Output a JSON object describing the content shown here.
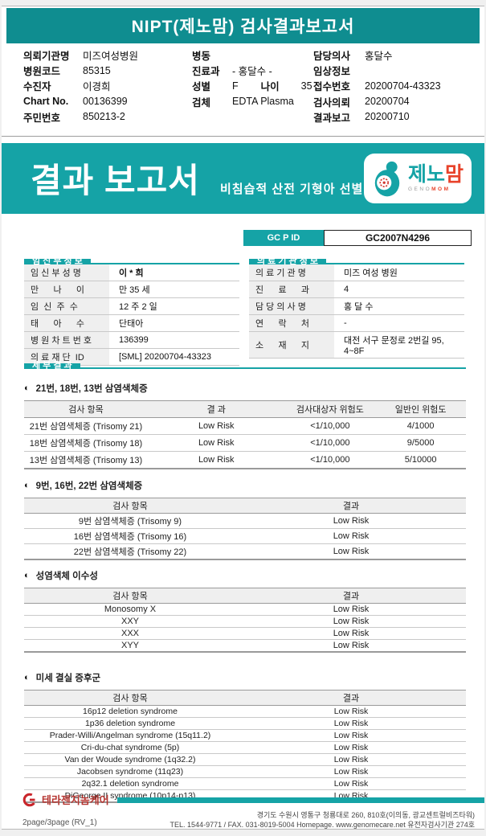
{
  "colors": {
    "teal": "#15a3a6",
    "teal_dark": "#0f8d90",
    "logo_red": "#e8432b",
    "footer_red": "#b5342f",
    "status_low_risk_text": "#222222"
  },
  "header": {
    "title": "NIPT(제노맘) 검사결과보고서"
  },
  "info_header": {
    "col1": [
      {
        "label": "의뢰기관명",
        "value": "미즈여성병원"
      },
      {
        "label": "병원코드",
        "value": "85315"
      },
      {
        "label": "수진자",
        "value": "이경희"
      },
      {
        "label": "Chart No.",
        "value": "00136399"
      },
      {
        "label": "주민번호",
        "value": "850213-2"
      }
    ],
    "col2": [
      {
        "label": "병동",
        "value": ""
      },
      {
        "label": "진료과",
        "value": "- 홍달수 -"
      },
      {
        "label": "성별",
        "value": "F",
        "label2": "나이",
        "value2": "35"
      },
      {
        "label": "검체",
        "value": "EDTA Plasma"
      }
    ],
    "col3": [
      {
        "label": "담당의사",
        "value": "홍달수"
      },
      {
        "label": "임상정보",
        "value": ""
      },
      {
        "label": "접수번호",
        "value": "20200704-43323"
      },
      {
        "label": "검사의뢰",
        "value": "20200704"
      },
      {
        "label": "결과보고",
        "value": "20200710"
      }
    ]
  },
  "banner": {
    "title": "결과 보고서",
    "subtitle": "비침습적 산전 기형아 선별 검사",
    "logo": {
      "kr_teal": "제노",
      "kr_red": "맘",
      "en_gray": "GENO",
      "en_red": "MOM"
    }
  },
  "gcpid": {
    "label": "GC P ID",
    "value": "GC2007N4296"
  },
  "pregnancy_info": {
    "title": "임 신 부 정 보",
    "rows": [
      {
        "label": "임 신 부 성 명",
        "value": "이 * 희",
        "bold": true
      },
      {
        "label": "만      나      이",
        "value": "만 35 세"
      },
      {
        "label": "임  신  주  수",
        "value": "12 주 2 일"
      },
      {
        "label": "태      아      수",
        "value": "단태아"
      },
      {
        "label": "병 원 차 트 번 호",
        "value": "136399"
      },
      {
        "label": "의 료 재 단  ID",
        "value": "[SML] 20200704-43323"
      }
    ]
  },
  "clinic_info": {
    "title": "의 료 기 관 정 보",
    "rows": [
      {
        "label": "의 료 기 관 명",
        "value": "미즈 여성 병원"
      },
      {
        "label": "진      료      과",
        "value": "4"
      },
      {
        "label": "담 당 의 사 명",
        "value": "홍 달 수"
      },
      {
        "label": "연      락      처",
        "value": "-"
      },
      {
        "label": "소      재      지",
        "value": "대전 서구 문정로 2번길 95, 4~8F",
        "tall": true
      }
    ]
  },
  "detail": {
    "section_title": "세 부 결 과",
    "bullet": "◐",
    "subsections": [
      {
        "title": "21번, 18번, 13번 삼염색체증",
        "columns": [
          "검사 항목",
          "결 과",
          "검사대상자 위험도",
          "일반인 위험도"
        ],
        "rows": [
          [
            "21번 삼염색체증 (Trisomy 21)",
            "Low Risk",
            "<1/10,000",
            "4/1000"
          ],
          [
            "18번 삼염색체증 (Trisomy 18)",
            "Low Risk",
            "<1/10,000",
            "9/5000"
          ],
          [
            "13번 삼염색체증 (Trisomy 13)",
            "Low Risk",
            "<1/10,000",
            "5/10000"
          ]
        ]
      },
      {
        "title": "9번, 16번, 22번 삼염색체증",
        "columns": [
          "검사 항목",
          "결과"
        ],
        "rows": [
          [
            "9번 삼염색체증 (Trisomy 9)",
            "Low Risk"
          ],
          [
            "16번 삼염색체증 (Trisomy 16)",
            "Low Risk"
          ],
          [
            "22번 삼염색체증 (Trisomy 22)",
            "Low Risk"
          ]
        ]
      },
      {
        "title": "성염색체 이수성",
        "columns": [
          "검사 항목",
          "결과"
        ],
        "rows": [
          [
            "Monosomy X",
            "Low Risk"
          ],
          [
            "XXY",
            "Low Risk"
          ],
          [
            "XXX",
            "Low Risk"
          ],
          [
            "XYY",
            "Low Risk"
          ]
        ]
      },
      {
        "title": "미세 결실 증후군",
        "columns": [
          "검사 항목",
          "결과"
        ],
        "rows": [
          [
            "16p12 deletion syndrome",
            "Low Risk"
          ],
          [
            "1p36  deletion syndrome",
            "Low Risk"
          ],
          [
            "Prader-Willi/Angelman syndrome (15q11.2)",
            "Low Risk"
          ],
          [
            "Cri-du-chat syndrome (5p)",
            "Low Risk"
          ],
          [
            "Van der Woude syndrome (1q32.2)",
            "Low Risk"
          ],
          [
            "Jacobsen syndrome (11q23)",
            "Low Risk"
          ],
          [
            "2q32.1 deletion syndrome",
            "Low Risk"
          ],
          [
            "DiGeorge II syndrome (10p14-p13)",
            "Low Risk"
          ]
        ]
      }
    ]
  },
  "footer": {
    "company": "테라젠지놈케어",
    "address_line1": "경기도 수원시 영통구 청룡대로 260, 810호(이의동, 광교센트럴비즈타워)",
    "address_line2": "TEL. 1544-9771 / FAX. 031-8019-5004 Homepage. www.genomecare.net 유전자검사기관 274호",
    "page_indicator": "2page/3page (RV_1)"
  }
}
